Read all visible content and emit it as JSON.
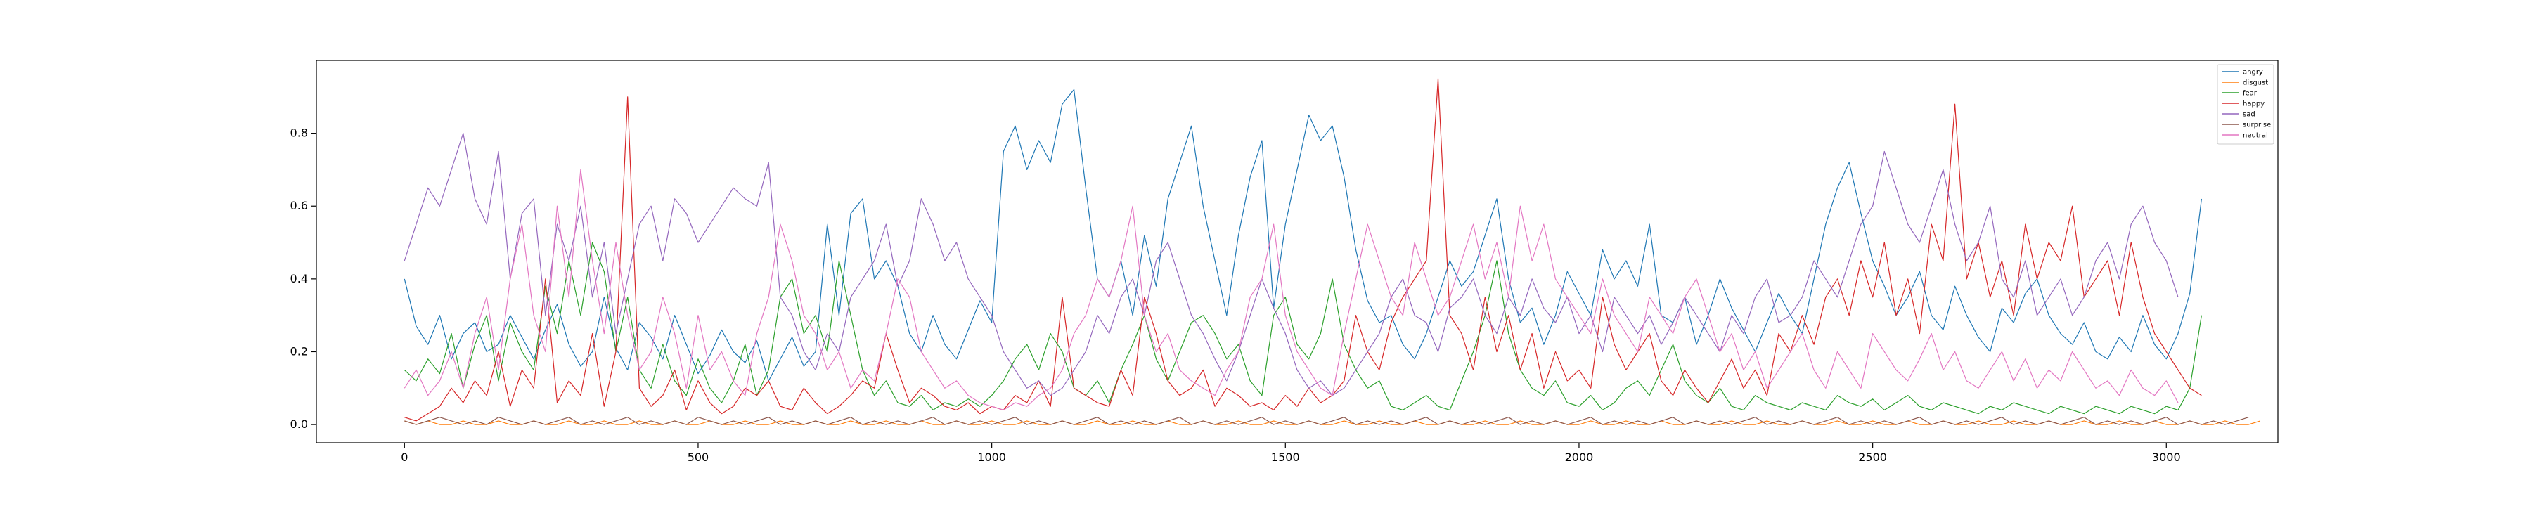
{
  "chart_data": {
    "type": "line",
    "title": "",
    "xlabel": "",
    "ylabel": "",
    "xlim": [
      -150,
      3190
    ],
    "ylim": [
      -0.05,
      1.0
    ],
    "x_ticks": [
      0,
      500,
      1000,
      1500,
      2000,
      2500,
      3000
    ],
    "y_ticks": [
      0.0,
      0.2,
      0.4,
      0.6,
      0.8
    ],
    "x_tick_labels": [
      "0",
      "500",
      "1000",
      "1500",
      "2000",
      "2500",
      "3000"
    ],
    "y_tick_labels": [
      "0.0",
      "0.2",
      "0.4",
      "0.6",
      "0.8"
    ],
    "grid": false,
    "legend_position": "top-right",
    "x_start": 0,
    "x_step": 20,
    "series": [
      {
        "name": "angry",
        "color": "#1f77b4",
        "values": [
          0.4,
          0.27,
          0.22,
          0.3,
          0.18,
          0.25,
          0.28,
          0.2,
          0.22,
          0.3,
          0.24,
          0.18,
          0.26,
          0.33,
          0.22,
          0.16,
          0.2,
          0.35,
          0.21,
          0.15,
          0.28,
          0.24,
          0.18,
          0.3,
          0.22,
          0.14,
          0.19,
          0.26,
          0.2,
          0.17,
          0.23,
          0.12,
          0.18,
          0.24,
          0.16,
          0.2,
          0.55,
          0.3,
          0.58,
          0.62,
          0.4,
          0.45,
          0.38,
          0.25,
          0.2,
          0.3,
          0.22,
          0.18,
          0.26,
          0.34,
          0.28,
          0.75,
          0.82,
          0.7,
          0.78,
          0.72,
          0.88,
          0.92,
          0.65,
          0.4,
          0.35,
          0.45,
          0.3,
          0.52,
          0.38,
          0.62,
          0.72,
          0.82,
          0.6,
          0.45,
          0.3,
          0.52,
          0.68,
          0.78,
          0.32,
          0.55,
          0.7,
          0.85,
          0.78,
          0.82,
          0.68,
          0.48,
          0.34,
          0.28,
          0.3,
          0.22,
          0.18,
          0.25,
          0.35,
          0.45,
          0.38,
          0.42,
          0.52,
          0.62,
          0.4,
          0.28,
          0.32,
          0.22,
          0.3,
          0.42,
          0.36,
          0.3,
          0.48,
          0.4,
          0.45,
          0.38,
          0.55,
          0.3,
          0.28,
          0.35,
          0.22,
          0.3,
          0.4,
          0.32,
          0.26,
          0.2,
          0.28,
          0.36,
          0.3,
          0.25,
          0.4,
          0.55,
          0.65,
          0.72,
          0.58,
          0.45,
          0.38,
          0.3,
          0.35,
          0.42,
          0.3,
          0.26,
          0.38,
          0.3,
          0.24,
          0.2,
          0.32,
          0.28,
          0.36,
          0.4,
          0.3,
          0.25,
          0.22,
          0.28,
          0.2,
          0.18,
          0.24,
          0.2,
          0.3,
          0.22,
          0.18,
          0.25,
          0.36,
          0.62
        ]
      },
      {
        "name": "disgust",
        "color": "#ff7f0e",
        "values": [
          0.01,
          0.0,
          0.01,
          0.0,
          0.0,
          0.01,
          0.0,
          0.0,
          0.01,
          0.0,
          0.0,
          0.01,
          0.0,
          0.0,
          0.01,
          0.0,
          0.0,
          0.01,
          0.0,
          0.0,
          0.01,
          0.0,
          0.0,
          0.01,
          0.0,
          0.0,
          0.01,
          0.0,
          0.0,
          0.01,
          0.0,
          0.0,
          0.01,
          0.0,
          0.0,
          0.01,
          0.0,
          0.0,
          0.01,
          0.0,
          0.0,
          0.01,
          0.0,
          0.0,
          0.01,
          0.0,
          0.0,
          0.01,
          0.0,
          0.0,
          0.01,
          0.0,
          0.0,
          0.01,
          0.0,
          0.0,
          0.01,
          0.0,
          0.0,
          0.01,
          0.0,
          0.0,
          0.01,
          0.0,
          0.0,
          0.01,
          0.0,
          0.0,
          0.01,
          0.0,
          0.0,
          0.01,
          0.0,
          0.0,
          0.01,
          0.0,
          0.0,
          0.01,
          0.0,
          0.0,
          0.01,
          0.0,
          0.0,
          0.01,
          0.0,
          0.0,
          0.01,
          0.0,
          0.0,
          0.01,
          0.0,
          0.0,
          0.01,
          0.0,
          0.0,
          0.01,
          0.0,
          0.0,
          0.01,
          0.0,
          0.0,
          0.01,
          0.0,
          0.0,
          0.01,
          0.0,
          0.0,
          0.01,
          0.0,
          0.0,
          0.01,
          0.0,
          0.0,
          0.01,
          0.0,
          0.0,
          0.01,
          0.0,
          0.0,
          0.01,
          0.0,
          0.0,
          0.01,
          0.0,
          0.0,
          0.01,
          0.0,
          0.0,
          0.01,
          0.0,
          0.0,
          0.01,
          0.0,
          0.0,
          0.01,
          0.0,
          0.0,
          0.01,
          0.0,
          0.0,
          0.01,
          0.0,
          0.0,
          0.01,
          0.0,
          0.0,
          0.01,
          0.0,
          0.0,
          0.01,
          0.0,
          0.0,
          0.01,
          0.0,
          0.0,
          0.01,
          0.0,
          0.0,
          0.01
        ]
      },
      {
        "name": "fear",
        "color": "#2ca02c",
        "values": [
          0.15,
          0.12,
          0.18,
          0.14,
          0.25,
          0.1,
          0.22,
          0.3,
          0.12,
          0.28,
          0.2,
          0.15,
          0.38,
          0.25,
          0.45,
          0.3,
          0.5,
          0.42,
          0.2,
          0.35,
          0.15,
          0.1,
          0.22,
          0.12,
          0.08,
          0.18,
          0.1,
          0.06,
          0.12,
          0.22,
          0.08,
          0.15,
          0.35,
          0.4,
          0.25,
          0.3,
          0.2,
          0.45,
          0.3,
          0.15,
          0.08,
          0.12,
          0.06,
          0.05,
          0.08,
          0.04,
          0.06,
          0.05,
          0.07,
          0.05,
          0.08,
          0.12,
          0.18,
          0.22,
          0.15,
          0.25,
          0.2,
          0.1,
          0.08,
          0.12,
          0.06,
          0.15,
          0.22,
          0.3,
          0.18,
          0.12,
          0.2,
          0.28,
          0.3,
          0.25,
          0.18,
          0.22,
          0.12,
          0.08,
          0.3,
          0.35,
          0.22,
          0.18,
          0.25,
          0.4,
          0.22,
          0.15,
          0.1,
          0.12,
          0.05,
          0.04,
          0.06,
          0.08,
          0.05,
          0.04,
          0.12,
          0.2,
          0.3,
          0.45,
          0.25,
          0.15,
          0.1,
          0.08,
          0.12,
          0.06,
          0.05,
          0.08,
          0.04,
          0.06,
          0.1,
          0.12,
          0.08,
          0.15,
          0.22,
          0.12,
          0.08,
          0.06,
          0.1,
          0.05,
          0.04,
          0.08,
          0.06,
          0.05,
          0.04,
          0.06,
          0.05,
          0.04,
          0.08,
          0.06,
          0.05,
          0.07,
          0.04,
          0.06,
          0.08,
          0.05,
          0.04,
          0.06,
          0.05,
          0.04,
          0.03,
          0.05,
          0.04,
          0.06,
          0.05,
          0.04,
          0.03,
          0.05,
          0.04,
          0.03,
          0.05,
          0.04,
          0.03,
          0.05,
          0.04,
          0.03,
          0.05,
          0.04,
          0.1,
          0.3
        ]
      },
      {
        "name": "happy",
        "color": "#d62728",
        "values": [
          0.02,
          0.01,
          0.03,
          0.05,
          0.1,
          0.06,
          0.12,
          0.08,
          0.2,
          0.05,
          0.15,
          0.1,
          0.4,
          0.06,
          0.12,
          0.08,
          0.25,
          0.05,
          0.2,
          0.9,
          0.1,
          0.05,
          0.08,
          0.15,
          0.04,
          0.12,
          0.06,
          0.03,
          0.05,
          0.1,
          0.08,
          0.12,
          0.05,
          0.04,
          0.1,
          0.06,
          0.03,
          0.05,
          0.08,
          0.12,
          0.1,
          0.25,
          0.15,
          0.06,
          0.1,
          0.08,
          0.05,
          0.04,
          0.06,
          0.03,
          0.05,
          0.04,
          0.08,
          0.06,
          0.12,
          0.05,
          0.35,
          0.1,
          0.08,
          0.06,
          0.05,
          0.15,
          0.08,
          0.35,
          0.25,
          0.12,
          0.08,
          0.1,
          0.15,
          0.05,
          0.1,
          0.08,
          0.05,
          0.06,
          0.04,
          0.08,
          0.05,
          0.1,
          0.06,
          0.08,
          0.12,
          0.3,
          0.2,
          0.15,
          0.28,
          0.35,
          0.4,
          0.45,
          0.95,
          0.3,
          0.25,
          0.15,
          0.35,
          0.2,
          0.3,
          0.15,
          0.25,
          0.1,
          0.2,
          0.12,
          0.15,
          0.1,
          0.35,
          0.22,
          0.15,
          0.2,
          0.25,
          0.12,
          0.08,
          0.15,
          0.1,
          0.06,
          0.12,
          0.18,
          0.1,
          0.15,
          0.08,
          0.25,
          0.2,
          0.3,
          0.22,
          0.35,
          0.4,
          0.3,
          0.45,
          0.35,
          0.5,
          0.3,
          0.4,
          0.25,
          0.55,
          0.45,
          0.88,
          0.4,
          0.5,
          0.35,
          0.45,
          0.3,
          0.55,
          0.4,
          0.5,
          0.45,
          0.6,
          0.35,
          0.4,
          0.45,
          0.3,
          0.5,
          0.35,
          0.25,
          0.2,
          0.15,
          0.1,
          0.08
        ]
      },
      {
        "name": "sad",
        "color": "#9467bd",
        "values": [
          0.45,
          0.55,
          0.65,
          0.6,
          0.7,
          0.8,
          0.62,
          0.55,
          0.75,
          0.4,
          0.58,
          0.62,
          0.3,
          0.55,
          0.45,
          0.6,
          0.35,
          0.5,
          0.25,
          0.4,
          0.55,
          0.6,
          0.45,
          0.62,
          0.58,
          0.5,
          0.55,
          0.6,
          0.65,
          0.62,
          0.6,
          0.72,
          0.35,
          0.3,
          0.2,
          0.15,
          0.25,
          0.2,
          0.35,
          0.4,
          0.45,
          0.55,
          0.38,
          0.45,
          0.62,
          0.55,
          0.45,
          0.5,
          0.4,
          0.35,
          0.3,
          0.2,
          0.15,
          0.1,
          0.12,
          0.08,
          0.1,
          0.15,
          0.2,
          0.3,
          0.25,
          0.35,
          0.4,
          0.3,
          0.45,
          0.5,
          0.4,
          0.3,
          0.25,
          0.18,
          0.12,
          0.2,
          0.3,
          0.4,
          0.32,
          0.25,
          0.15,
          0.1,
          0.12,
          0.08,
          0.1,
          0.15,
          0.2,
          0.25,
          0.35,
          0.4,
          0.3,
          0.28,
          0.2,
          0.32,
          0.35,
          0.4,
          0.3,
          0.25,
          0.35,
          0.3,
          0.4,
          0.32,
          0.28,
          0.35,
          0.25,
          0.3,
          0.2,
          0.35,
          0.3,
          0.25,
          0.3,
          0.22,
          0.28,
          0.35,
          0.3,
          0.25,
          0.2,
          0.3,
          0.25,
          0.35,
          0.4,
          0.28,
          0.3,
          0.35,
          0.45,
          0.4,
          0.35,
          0.45,
          0.55,
          0.6,
          0.75,
          0.65,
          0.55,
          0.5,
          0.6,
          0.7,
          0.55,
          0.45,
          0.5,
          0.6,
          0.4,
          0.35,
          0.45,
          0.3,
          0.35,
          0.4,
          0.3,
          0.35,
          0.45,
          0.5,
          0.4,
          0.55,
          0.6,
          0.5,
          0.45,
          0.35
        ]
      },
      {
        "name": "surprise",
        "color": "#8c564b",
        "values": [
          0.01,
          0.0,
          0.01,
          0.02,
          0.01,
          0.0,
          0.01,
          0.0,
          0.02,
          0.01,
          0.0,
          0.01,
          0.0,
          0.01,
          0.02,
          0.0,
          0.01,
          0.0,
          0.01,
          0.02,
          0.0,
          0.01,
          0.0,
          0.01,
          0.0,
          0.02,
          0.01,
          0.0,
          0.01,
          0.0,
          0.01,
          0.02,
          0.0,
          0.01,
          0.0,
          0.01,
          0.0,
          0.01,
          0.02,
          0.0,
          0.01,
          0.0,
          0.01,
          0.0,
          0.01,
          0.02,
          0.0,
          0.01,
          0.0,
          0.01,
          0.0,
          0.01,
          0.02,
          0.0,
          0.01,
          0.0,
          0.01,
          0.0,
          0.01,
          0.02,
          0.0,
          0.01,
          0.0,
          0.01,
          0.0,
          0.01,
          0.02,
          0.0,
          0.01,
          0.0,
          0.01,
          0.0,
          0.01,
          0.02,
          0.0,
          0.01,
          0.0,
          0.01,
          0.0,
          0.01,
          0.02,
          0.0,
          0.01,
          0.0,
          0.01,
          0.0,
          0.01,
          0.02,
          0.0,
          0.01,
          0.0,
          0.01,
          0.0,
          0.01,
          0.02,
          0.0,
          0.01,
          0.0,
          0.01,
          0.0,
          0.01,
          0.02,
          0.0,
          0.01,
          0.0,
          0.01,
          0.0,
          0.01,
          0.02,
          0.0,
          0.01,
          0.0,
          0.01,
          0.0,
          0.01,
          0.02,
          0.0,
          0.01,
          0.0,
          0.01,
          0.0,
          0.01,
          0.02,
          0.0,
          0.01,
          0.0,
          0.01,
          0.0,
          0.01,
          0.02,
          0.0,
          0.01,
          0.0,
          0.01,
          0.0,
          0.01,
          0.02,
          0.0,
          0.01,
          0.0,
          0.01,
          0.0,
          0.01,
          0.02,
          0.0,
          0.01,
          0.0,
          0.01,
          0.0,
          0.01,
          0.02,
          0.0,
          0.01,
          0.0,
          0.01,
          0.0,
          0.01,
          0.02
        ]
      },
      {
        "name": "neutral",
        "color": "#e377c2",
        "values": [
          0.1,
          0.15,
          0.08,
          0.12,
          0.2,
          0.1,
          0.25,
          0.35,
          0.15,
          0.4,
          0.55,
          0.3,
          0.2,
          0.6,
          0.35,
          0.7,
          0.45,
          0.25,
          0.5,
          0.3,
          0.15,
          0.2,
          0.35,
          0.25,
          0.1,
          0.3,
          0.15,
          0.2,
          0.12,
          0.08,
          0.25,
          0.35,
          0.55,
          0.45,
          0.3,
          0.25,
          0.15,
          0.2,
          0.1,
          0.15,
          0.12,
          0.25,
          0.4,
          0.35,
          0.2,
          0.15,
          0.1,
          0.12,
          0.08,
          0.06,
          0.05,
          0.04,
          0.06,
          0.05,
          0.08,
          0.1,
          0.15,
          0.25,
          0.3,
          0.4,
          0.35,
          0.45,
          0.6,
          0.3,
          0.2,
          0.25,
          0.15,
          0.12,
          0.1,
          0.08,
          0.15,
          0.2,
          0.35,
          0.4,
          0.55,
          0.3,
          0.2,
          0.15,
          0.1,
          0.08,
          0.25,
          0.4,
          0.55,
          0.45,
          0.35,
          0.3,
          0.5,
          0.4,
          0.3,
          0.35,
          0.45,
          0.55,
          0.4,
          0.5,
          0.35,
          0.6,
          0.45,
          0.55,
          0.4,
          0.35,
          0.3,
          0.25,
          0.4,
          0.3,
          0.25,
          0.2,
          0.35,
          0.3,
          0.25,
          0.35,
          0.4,
          0.3,
          0.2,
          0.25,
          0.15,
          0.2,
          0.1,
          0.15,
          0.2,
          0.25,
          0.15,
          0.1,
          0.2,
          0.15,
          0.1,
          0.25,
          0.2,
          0.15,
          0.12,
          0.18,
          0.25,
          0.15,
          0.2,
          0.12,
          0.1,
          0.15,
          0.2,
          0.12,
          0.18,
          0.1,
          0.15,
          0.12,
          0.2,
          0.15,
          0.1,
          0.12,
          0.08,
          0.15,
          0.1,
          0.08,
          0.12,
          0.06
        ]
      }
    ]
  }
}
